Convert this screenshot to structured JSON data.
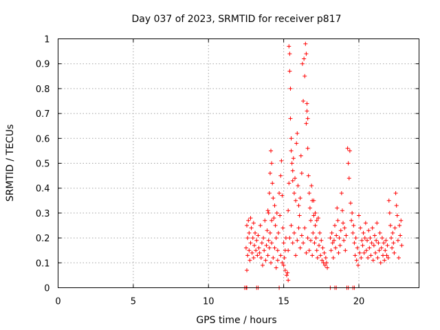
{
  "chart_data": {
    "type": "scatter",
    "title": "Day 037 of 2023, SRMTID for receiver p817",
    "xlabel": "GPS time / hours",
    "ylabel": "SRMTID / TECUs",
    "xlim": [
      0,
      24
    ],
    "ylim": [
      0,
      1
    ],
    "x_ticks": [
      0,
      5,
      10,
      15,
      20
    ],
    "x_tick_labels": [
      "0",
      "5",
      "10",
      "15",
      "20"
    ],
    "y_ticks": [
      0,
      0.1,
      0.2,
      0.3,
      0.4,
      0.5,
      0.6,
      0.7,
      0.8,
      0.9,
      1
    ],
    "y_tick_labels": [
      "0",
      "0.1",
      "0.2",
      "0.3",
      "0.4",
      "0.5",
      "0.6",
      "0.7",
      "0.8",
      "0.9",
      "1"
    ],
    "grid": true,
    "marker": "plus",
    "color": "#ff0000",
    "series": [
      {
        "name": "SRMTID",
        "points": [
          [
            12.4,
            0.0
          ],
          [
            12.5,
            0.0
          ],
          [
            12.55,
            0.0
          ],
          [
            13.2,
            0.0
          ],
          [
            13.3,
            0.0
          ],
          [
            14.7,
            0.0
          ],
          [
            18.1,
            0.0
          ],
          [
            18.4,
            0.0
          ],
          [
            18.5,
            0.0
          ],
          [
            19.2,
            0.0
          ],
          [
            19.3,
            0.0
          ],
          [
            19.6,
            0.0
          ],
          [
            19.7,
            0.0
          ],
          [
            12.55,
            0.07
          ],
          [
            12.5,
            0.16
          ],
          [
            12.55,
            0.25
          ],
          [
            12.6,
            0.13
          ],
          [
            12.6,
            0.2
          ],
          [
            12.65,
            0.27
          ],
          [
            12.7,
            0.15
          ],
          [
            12.7,
            0.22
          ],
          [
            12.75,
            0.11
          ],
          [
            12.8,
            0.28
          ],
          [
            12.8,
            0.18
          ],
          [
            12.85,
            0.24
          ],
          [
            12.9,
            0.14
          ],
          [
            12.95,
            0.2
          ],
          [
            13.0,
            0.26
          ],
          [
            13.0,
            0.12
          ],
          [
            13.05,
            0.17
          ],
          [
            13.1,
            0.22
          ],
          [
            13.15,
            0.15
          ],
          [
            13.2,
            0.19
          ],
          [
            13.25,
            0.13
          ],
          [
            13.3,
            0.21
          ],
          [
            13.35,
            0.16
          ],
          [
            13.4,
            0.14
          ],
          [
            13.45,
            0.25
          ],
          [
            13.5,
            0.12
          ],
          [
            13.55,
            0.18
          ],
          [
            13.6,
            0.09
          ],
          [
            13.65,
            0.2
          ],
          [
            13.7,
            0.15
          ],
          [
            13.75,
            0.27
          ],
          [
            13.8,
            0.11
          ],
          [
            13.85,
            0.17
          ],
          [
            13.9,
            0.23
          ],
          [
            13.95,
            0.13
          ],
          [
            14.0,
            0.19
          ],
          [
            14.0,
            0.3
          ],
          [
            14.05,
            0.16
          ],
          [
            14.1,
            0.22
          ],
          [
            14.15,
            0.1
          ],
          [
            14.2,
            0.18
          ],
          [
            14.2,
            0.27
          ],
          [
            13.95,
            0.31
          ],
          [
            14.05,
            0.38
          ],
          [
            14.1,
            0.46
          ],
          [
            14.15,
            0.55
          ],
          [
            14.2,
            0.5
          ],
          [
            14.25,
            0.42
          ],
          [
            14.3,
            0.36
          ],
          [
            14.35,
            0.28
          ],
          [
            14.4,
            0.33
          ],
          [
            14.45,
            0.25
          ],
          [
            14.5,
            0.2
          ],
          [
            14.55,
            0.3
          ],
          [
            14.6,
            0.15
          ],
          [
            14.65,
            0.22
          ],
          [
            14.7,
            0.38
          ],
          [
            14.75,
            0.29
          ],
          [
            14.8,
            0.45
          ],
          [
            14.85,
            0.51
          ],
          [
            14.9,
            0.37
          ],
          [
            14.95,
            0.24
          ],
          [
            15.0,
            0.18
          ],
          [
            15.05,
            0.12
          ],
          [
            15.1,
            0.15
          ],
          [
            15.15,
            0.2
          ],
          [
            14.3,
            0.12
          ],
          [
            14.4,
            0.16
          ],
          [
            14.5,
            0.08
          ],
          [
            14.6,
            0.11
          ],
          [
            14.8,
            0.13
          ],
          [
            14.9,
            0.1
          ],
          [
            15.0,
            0.09
          ],
          [
            15.1,
            0.07
          ],
          [
            15.2,
            0.05
          ],
          [
            15.3,
            0.03
          ],
          [
            15.25,
            0.06
          ],
          [
            15.3,
            0.31
          ],
          [
            15.35,
            0.42
          ],
          [
            15.35,
            0.97
          ],
          [
            15.4,
            0.94
          ],
          [
            15.4,
            0.87
          ],
          [
            15.45,
            0.8
          ],
          [
            15.45,
            0.68
          ],
          [
            15.5,
            0.6
          ],
          [
            15.5,
            0.55
          ],
          [
            15.55,
            0.5
          ],
          [
            15.6,
            0.47
          ],
          [
            15.6,
            0.43
          ],
          [
            15.65,
            0.52
          ],
          [
            15.7,
            0.38
          ],
          [
            15.75,
            0.44
          ],
          [
            15.8,
            0.35
          ],
          [
            15.85,
            0.58
          ],
          [
            15.9,
            0.62
          ],
          [
            15.95,
            0.41
          ],
          [
            16.0,
            0.33
          ],
          [
            16.05,
            0.29
          ],
          [
            16.1,
            0.36
          ],
          [
            16.15,
            0.53
          ],
          [
            16.2,
            0.46
          ],
          [
            15.3,
            0.15
          ],
          [
            15.4,
            0.2
          ],
          [
            15.5,
            0.25
          ],
          [
            15.6,
            0.18
          ],
          [
            15.7,
            0.22
          ],
          [
            15.8,
            0.13
          ],
          [
            15.9,
            0.19
          ],
          [
            16.0,
            0.24
          ],
          [
            16.1,
            0.16
          ],
          [
            16.2,
            0.21
          ],
          [
            16.25,
            0.9
          ],
          [
            16.3,
            0.75
          ],
          [
            16.35,
            0.92
          ],
          [
            16.4,
            0.85
          ],
          [
            16.45,
            0.98
          ],
          [
            16.5,
            0.94
          ],
          [
            16.5,
            0.66
          ],
          [
            16.55,
            0.71
          ],
          [
            16.55,
            0.74
          ],
          [
            16.6,
            0.68
          ],
          [
            16.6,
            0.56
          ],
          [
            16.65,
            0.45
          ],
          [
            16.7,
            0.38
          ],
          [
            16.75,
            0.32
          ],
          [
            16.8,
            0.27
          ],
          [
            16.85,
            0.41
          ],
          [
            16.9,
            0.35
          ],
          [
            16.95,
            0.22
          ],
          [
            17.0,
            0.29
          ],
          [
            17.05,
            0.18
          ],
          [
            17.1,
            0.25
          ],
          [
            17.15,
            0.2
          ],
          [
            17.2,
            0.15
          ],
          [
            17.25,
            0.12
          ],
          [
            17.3,
            0.28
          ],
          [
            17.35,
            0.17
          ],
          [
            17.4,
            0.22
          ],
          [
            17.45,
            0.13
          ],
          [
            17.5,
            0.19
          ],
          [
            17.55,
            0.11
          ],
          [
            17.6,
            0.16
          ],
          [
            17.65,
            0.1
          ],
          [
            17.7,
            0.14
          ],
          [
            17.75,
            0.09
          ],
          [
            17.8,
            0.12
          ],
          [
            17.85,
            0.1
          ],
          [
            17.9,
            0.08
          ],
          [
            16.3,
            0.18
          ],
          [
            16.4,
            0.24
          ],
          [
            16.5,
            0.14
          ],
          [
            16.6,
            0.2
          ],
          [
            16.7,
            0.15
          ],
          [
            16.8,
            0.19
          ],
          [
            16.9,
            0.13
          ],
          [
            17.0,
            0.35
          ],
          [
            17.1,
            0.3
          ],
          [
            17.2,
            0.27
          ],
          [
            18.1,
            0.2
          ],
          [
            18.15,
            0.15
          ],
          [
            18.2,
            0.22
          ],
          [
            18.25,
            0.18
          ],
          [
            18.3,
            0.12
          ],
          [
            18.35,
            0.19
          ],
          [
            18.4,
            0.25
          ],
          [
            18.45,
            0.16
          ],
          [
            18.5,
            0.21
          ],
          [
            18.55,
            0.32
          ],
          [
            18.6,
            0.27
          ],
          [
            18.65,
            0.14
          ],
          [
            18.7,
            0.2
          ],
          [
            18.75,
            0.17
          ],
          [
            18.8,
            0.23
          ],
          [
            18.85,
            0.38
          ],
          [
            18.9,
            0.31
          ],
          [
            18.95,
            0.26
          ],
          [
            19.0,
            0.19
          ],
          [
            19.05,
            0.24
          ],
          [
            19.1,
            0.15
          ],
          [
            19.15,
            0.21
          ],
          [
            19.25,
            0.56
          ],
          [
            19.3,
            0.5
          ],
          [
            19.35,
            0.44
          ],
          [
            19.4,
            0.55
          ],
          [
            19.45,
            0.34
          ],
          [
            19.5,
            0.27
          ],
          [
            19.55,
            0.3
          ],
          [
            19.6,
            0.22
          ],
          [
            19.65,
            0.25
          ],
          [
            19.7,
            0.18
          ],
          [
            19.75,
            0.13
          ],
          [
            19.8,
            0.2
          ],
          [
            19.85,
            0.11
          ],
          [
            19.9,
            0.16
          ],
          [
            19.95,
            0.09
          ],
          [
            20.0,
            0.29
          ],
          [
            20.05,
            0.14
          ],
          [
            20.1,
            0.24
          ],
          [
            20.15,
            0.12
          ],
          [
            20.2,
            0.19
          ],
          [
            20.25,
            0.17
          ],
          [
            20.3,
            0.22
          ],
          [
            20.35,
            0.14
          ],
          [
            20.4,
            0.2
          ],
          [
            20.45,
            0.26
          ],
          [
            20.5,
            0.15
          ],
          [
            20.55,
            0.19
          ],
          [
            20.6,
            0.12
          ],
          [
            20.65,
            0.23
          ],
          [
            20.7,
            0.16
          ],
          [
            20.75,
            0.2
          ],
          [
            20.8,
            0.13
          ],
          [
            20.85,
            0.18
          ],
          [
            20.9,
            0.24
          ],
          [
            20.95,
            0.11
          ],
          [
            21.0,
            0.17
          ],
          [
            21.05,
            0.21
          ],
          [
            21.1,
            0.14
          ],
          [
            21.15,
            0.19
          ],
          [
            21.2,
            0.26
          ],
          [
            21.25,
            0.12
          ],
          [
            21.3,
            0.18
          ],
          [
            21.35,
            0.15
          ],
          [
            21.4,
            0.22
          ],
          [
            21.45,
            0.1
          ],
          [
            21.5,
            0.16
          ],
          [
            21.55,
            0.2
          ],
          [
            21.6,
            0.13
          ],
          [
            21.65,
            0.18
          ],
          [
            21.7,
            0.11
          ],
          [
            21.75,
            0.15
          ],
          [
            21.8,
            0.19
          ],
          [
            21.85,
            0.13
          ],
          [
            21.9,
            0.17
          ],
          [
            21.95,
            0.12
          ],
          [
            22.0,
            0.35
          ],
          [
            22.05,
            0.3
          ],
          [
            22.1,
            0.25
          ],
          [
            22.15,
            0.2
          ],
          [
            22.2,
            0.16
          ],
          [
            22.25,
            0.22
          ],
          [
            22.3,
            0.18
          ],
          [
            22.35,
            0.14
          ],
          [
            22.4,
            0.24
          ],
          [
            22.45,
            0.38
          ],
          [
            22.5,
            0.33
          ],
          [
            22.55,
            0.29
          ],
          [
            22.6,
            0.19
          ],
          [
            22.65,
            0.12
          ],
          [
            22.7,
            0.25
          ],
          [
            22.75,
            0.21
          ],
          [
            22.8,
            0.27
          ],
          [
            22.85,
            0.17
          ]
        ]
      }
    ]
  }
}
